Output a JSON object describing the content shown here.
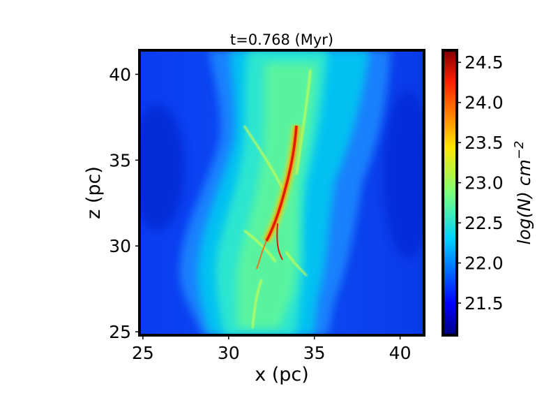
{
  "chart_data": {
    "type": "heatmap",
    "title": "t=0.768 (Myr)",
    "xlabel": "x (pc)",
    "ylabel": "z (pc)",
    "xlim": [
      24.8,
      41.4
    ],
    "ylim": [
      24.8,
      41.4
    ],
    "xticks": [
      {
        "value": 25,
        "label": "25"
      },
      {
        "value": 30,
        "label": "30"
      },
      {
        "value": 35,
        "label": "35"
      },
      {
        "value": 40,
        "label": "40"
      }
    ],
    "yticks": [
      {
        "value": 25,
        "label": "25"
      },
      {
        "value": 30,
        "label": "30"
      },
      {
        "value": 35,
        "label": "35"
      },
      {
        "value": 40,
        "label": "40"
      }
    ],
    "colorbar": {
      "label": "log(N) cm",
      "label_exponent": "−2",
      "range": [
        21.1,
        24.65
      ],
      "colormap": "jet",
      "ticks": [
        {
          "value": 21.5,
          "label": "21.5"
        },
        {
          "value": 22.0,
          "label": "22.0"
        },
        {
          "value": 22.5,
          "label": "22.5"
        },
        {
          "value": 23.0,
          "label": "23.0"
        },
        {
          "value": 23.5,
          "label": "23.5"
        },
        {
          "value": 24.0,
          "label": "24.0"
        },
        {
          "value": 24.5,
          "label": "24.5"
        }
      ]
    },
    "description_values": {
      "background_level": 21.5,
      "filament_level": 22.6,
      "ridge_peak": 24.5
    }
  }
}
